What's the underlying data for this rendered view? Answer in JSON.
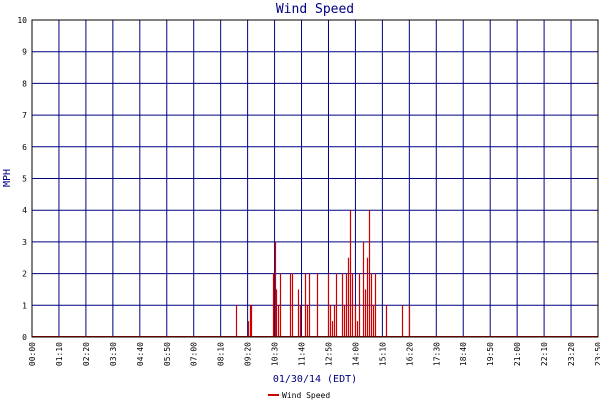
{
  "chart_data": {
    "type": "bar",
    "title": "Wind Speed",
    "xlabel": "01/30/14 (EDT)",
    "ylabel": "MPH",
    "ylim": [
      0,
      10
    ],
    "yticks": [
      "0",
      "1",
      "2",
      "3",
      "4",
      "5",
      "6",
      "7",
      "8",
      "9",
      "10"
    ],
    "xticks": [
      "00:00",
      "01:10",
      "02:20",
      "03:30",
      "04:40",
      "05:50",
      "07:00",
      "08:10",
      "09:20",
      "10:30",
      "11:40",
      "12:50",
      "14:00",
      "15:10",
      "16:20",
      "17:30",
      "18:40",
      "19:50",
      "21:00",
      "22:10",
      "23:20",
      "23:50"
    ],
    "grid": true,
    "legend_position": "bottom",
    "colors": {
      "series": "#cc0000",
      "grid": "#000080",
      "axis": "#000000"
    },
    "series": [
      {
        "name": "Wind Speed",
        "x": [
          "08:50",
          "09:20",
          "09:25",
          "09:30",
          "10:25",
          "10:30",
          "10:35",
          "10:40",
          "10:45",
          "11:10",
          "11:15",
          "11:30",
          "11:35",
          "11:50",
          "11:55",
          "12:00",
          "12:20",
          "12:50",
          "12:55",
          "13:00",
          "13:05",
          "13:10",
          "13:25",
          "13:30",
          "13:35",
          "13:40",
          "13:45",
          "13:50",
          "14:00",
          "14:05",
          "14:10",
          "14:20",
          "14:25",
          "14:30",
          "14:35",
          "14:40",
          "14:45",
          "14:50",
          "15:20",
          "16:00",
          "16:20"
        ],
        "values": [
          1,
          0.5,
          1,
          1,
          2,
          3,
          1.5,
          1,
          2,
          2,
          2,
          1.5,
          1,
          2,
          1,
          2,
          2,
          2,
          1,
          0.5,
          1,
          2,
          2,
          1,
          2,
          2.5,
          4,
          2,
          1,
          0.5,
          2,
          3,
          1.5,
          2.5,
          4,
          2,
          1,
          2,
          1,
          1,
          1
        ]
      }
    ]
  }
}
